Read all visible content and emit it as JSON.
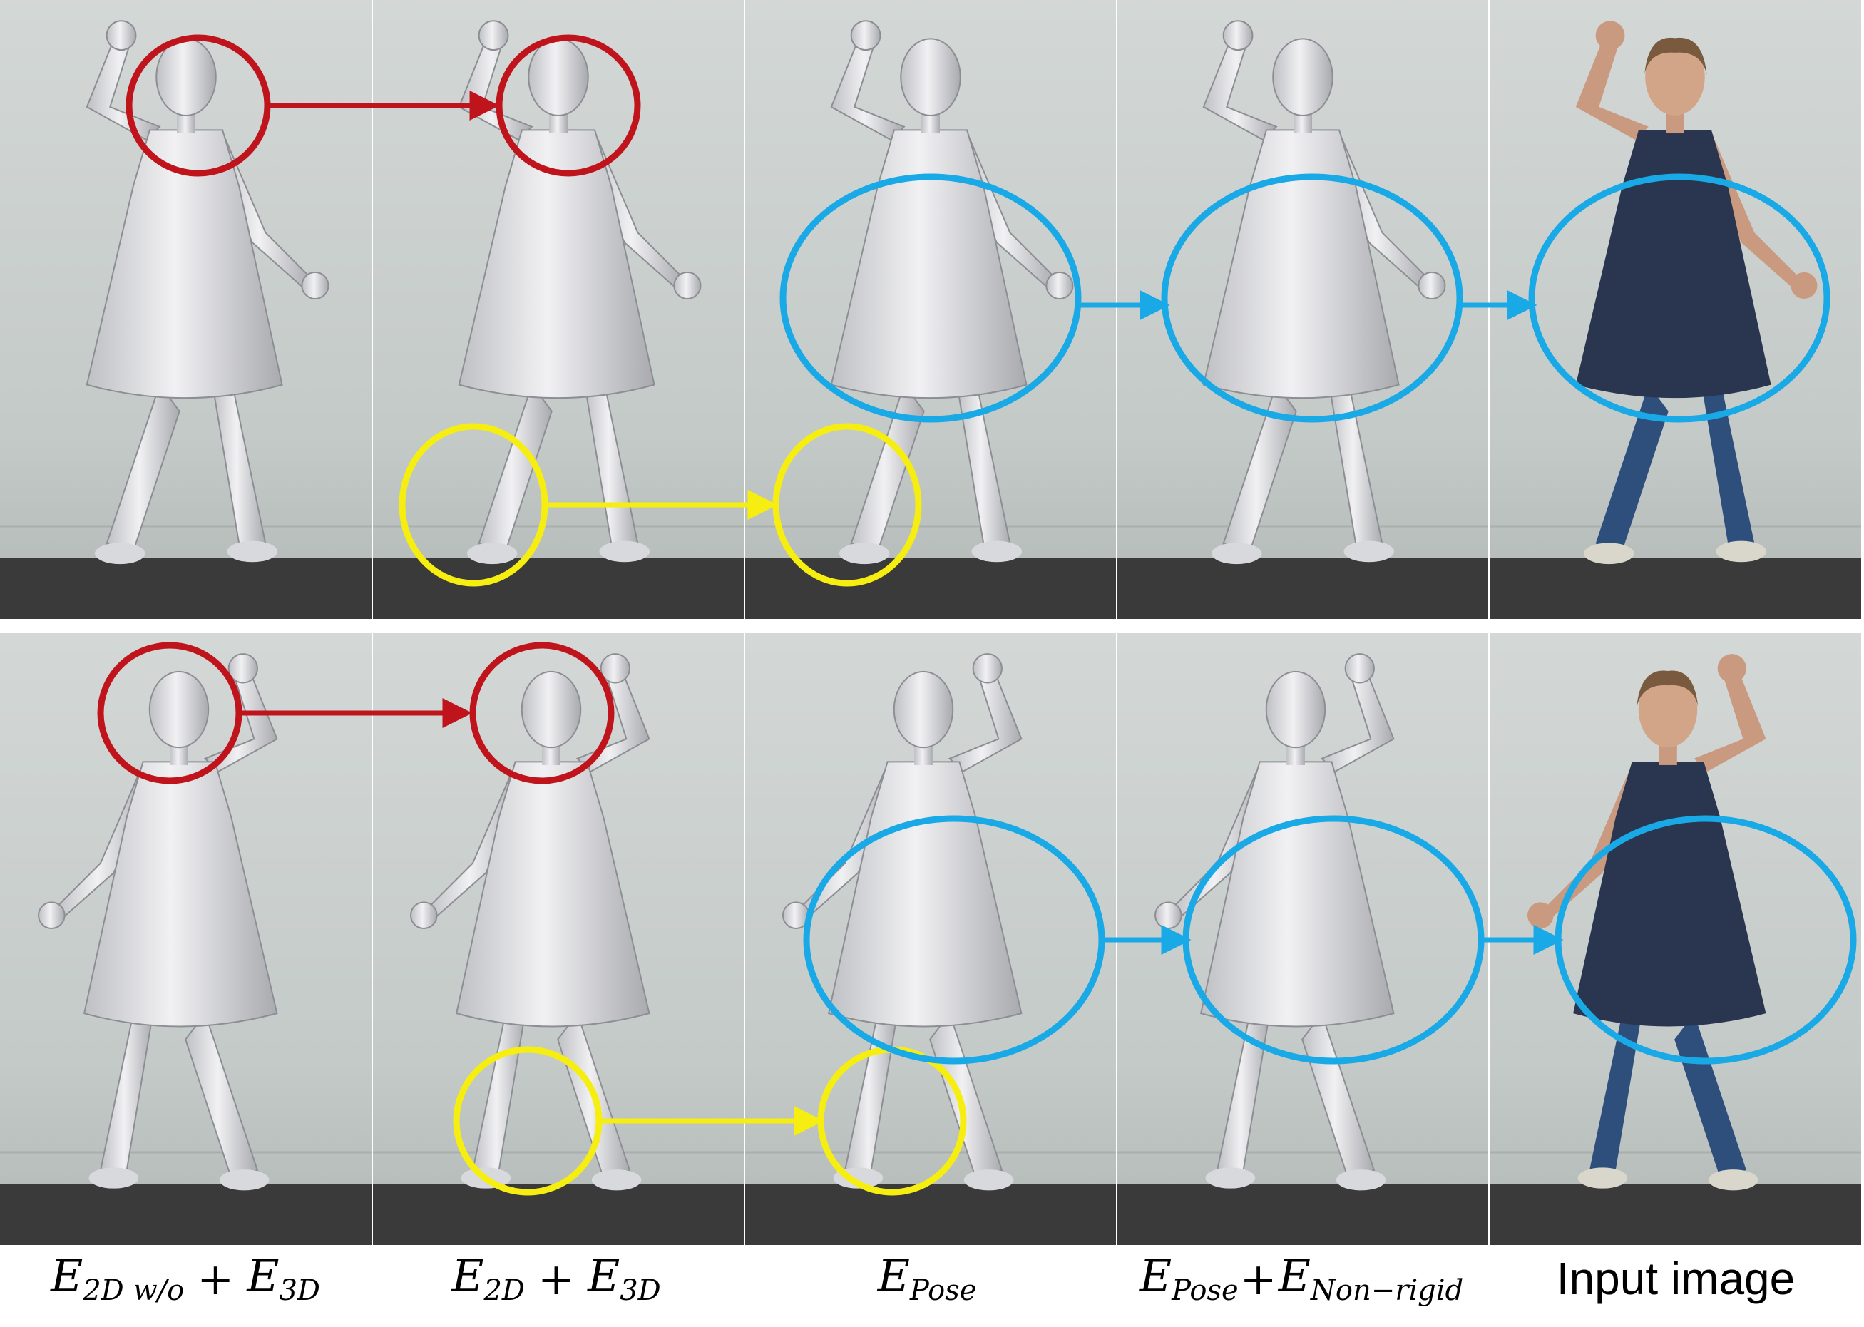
{
  "columns": [
    {
      "symbol": "E",
      "sub": "2D w/o",
      "op": "+",
      "symbol2": "E",
      "sub2": "3D"
    },
    {
      "symbol": "E",
      "sub": "2D",
      "op": "+",
      "symbol2": "E",
      "sub2": "3D"
    },
    {
      "symbol": "E",
      "sub": "Pose"
    },
    {
      "symbol": "E",
      "sub": "Pose",
      "op": "+",
      "symbol2": "E",
      "sub2": "Non−rigid"
    },
    {
      "label": "Input image"
    }
  ],
  "colors": {
    "red_marker": "#c0141c",
    "yellow_marker": "#f5ee10",
    "blue_marker": "#19a9e6",
    "wall": "#c9cfcd",
    "floor": "#3a3a3a",
    "mesh": "#e6e6e8",
    "dress": "#2a3650",
    "jeans": "#2e4f7c"
  }
}
